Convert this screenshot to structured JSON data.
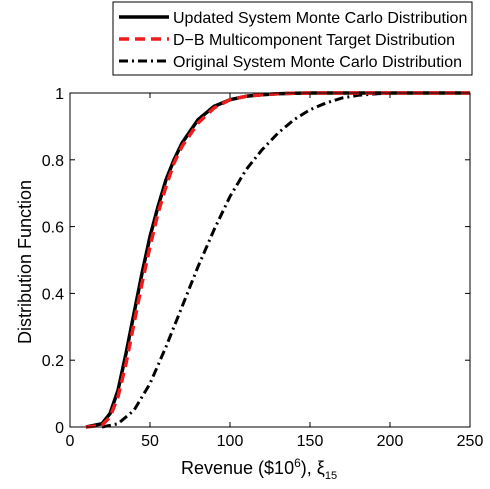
{
  "chart_data": {
    "type": "line",
    "xlabel": "Revenue ($10",
    "xlabel_sup": "6",
    "xlabel_tail": "), ξ",
    "xlabel_sub": "15",
    "ylabel": "Distribution Function",
    "xlim": [
      0,
      250
    ],
    "ylim": [
      0,
      1
    ],
    "xticks": [
      0,
      50,
      100,
      150,
      200,
      250
    ],
    "yticks": [
      0,
      0.2,
      0.4,
      0.6,
      0.8,
      1
    ],
    "xtick_labels": [
      "0",
      "50",
      "100",
      "150",
      "200",
      "250"
    ],
    "ytick_labels": [
      "0",
      "0.2",
      "0.4",
      "0.6",
      "0.8",
      "1"
    ],
    "grid": false,
    "legend_position": "top",
    "series": [
      {
        "name": "Updated System Monte Carlo Distribution",
        "color": "#000000",
        "style": "solid",
        "x": [
          10,
          20,
          25,
          30,
          35,
          40,
          45,
          50,
          55,
          60,
          65,
          70,
          80,
          90,
          100,
          110,
          120,
          130,
          140,
          150,
          170,
          200,
          250
        ],
        "y": [
          0,
          0.01,
          0.04,
          0.11,
          0.22,
          0.34,
          0.46,
          0.57,
          0.66,
          0.74,
          0.8,
          0.85,
          0.92,
          0.96,
          0.98,
          0.99,
          0.995,
          0.998,
          0.999,
          1.0,
          1.0,
          1.0,
          1.0
        ]
      },
      {
        "name": "D−B Multicomponent Target Distribution",
        "color": "#ee1c1c",
        "style": "dashed",
        "x": [
          10,
          20,
          25,
          30,
          35,
          40,
          45,
          50,
          55,
          60,
          65,
          70,
          80,
          90,
          100,
          110,
          120,
          130,
          140,
          150,
          170,
          200,
          250
        ],
        "y": [
          0,
          0.005,
          0.03,
          0.09,
          0.19,
          0.31,
          0.43,
          0.54,
          0.64,
          0.72,
          0.79,
          0.84,
          0.91,
          0.955,
          0.98,
          0.99,
          0.995,
          0.998,
          0.999,
          1.0,
          1.0,
          1.0,
          1.0
        ]
      },
      {
        "name": "Original System Monte Carlo Distribution",
        "color": "#000000",
        "style": "dashdot",
        "x": [
          20,
          30,
          40,
          50,
          60,
          70,
          80,
          90,
          100,
          110,
          120,
          130,
          140,
          150,
          160,
          170,
          180,
          190,
          200,
          250
        ],
        "y": [
          0,
          0.01,
          0.05,
          0.13,
          0.24,
          0.36,
          0.48,
          0.59,
          0.69,
          0.77,
          0.83,
          0.88,
          0.92,
          0.95,
          0.97,
          0.985,
          0.993,
          0.997,
          1.0,
          1.0
        ]
      }
    ]
  }
}
